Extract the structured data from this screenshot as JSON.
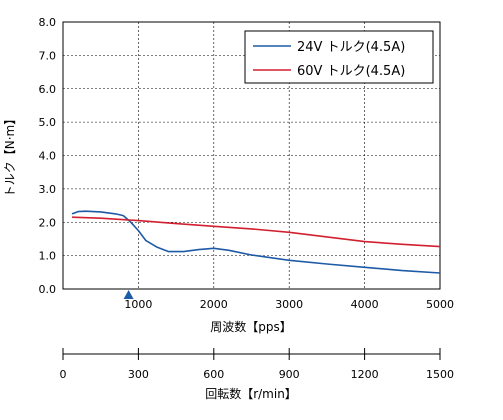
{
  "chart_data": {
    "type": "line",
    "xlabel": "周波数【pps】",
    "ylabel": "トルク【N·m】",
    "xlim": [
      0,
      5000
    ],
    "ylim": [
      0,
      8
    ],
    "x_ticks": [
      "1000",
      "2000",
      "3000",
      "4000",
      "5000"
    ],
    "y_ticks": [
      "0.0",
      "1.0",
      "2.0",
      "3.0",
      "4.0",
      "5.0",
      "6.0",
      "7.0",
      "8.0"
    ],
    "grid": true,
    "legend_position": "top-right",
    "marker_x": 870,
    "series": [
      {
        "name": "24V トルク(4.5A)",
        "color": "#1f5aa6",
        "points": [
          [
            120,
            2.25
          ],
          [
            200,
            2.32
          ],
          [
            300,
            2.33
          ],
          [
            500,
            2.31
          ],
          [
            700,
            2.25
          ],
          [
            800,
            2.2
          ],
          [
            900,
            2.0
          ],
          [
            1000,
            1.75
          ],
          [
            1100,
            1.45
          ],
          [
            1250,
            1.25
          ],
          [
            1400,
            1.12
          ],
          [
            1600,
            1.12
          ],
          [
            1800,
            1.18
          ],
          [
            2000,
            1.22
          ],
          [
            2200,
            1.16
          ],
          [
            2500,
            1.02
          ],
          [
            3000,
            0.86
          ],
          [
            3500,
            0.75
          ],
          [
            4000,
            0.65
          ],
          [
            4500,
            0.55
          ],
          [
            5000,
            0.48
          ]
        ]
      },
      {
        "name": "60V トルク(4.5A)",
        "color": "#d22030",
        "points": [
          [
            120,
            2.15
          ],
          [
            500,
            2.12
          ],
          [
            1000,
            2.05
          ],
          [
            1500,
            1.96
          ],
          [
            2000,
            1.88
          ],
          [
            2500,
            1.8
          ],
          [
            3000,
            1.7
          ],
          [
            3500,
            1.56
          ],
          [
            4000,
            1.42
          ],
          [
            4500,
            1.34
          ],
          [
            5000,
            1.27
          ]
        ]
      }
    ],
    "secondary_axis": {
      "label": "回転数【r/min】",
      "xlim": [
        0,
        1500
      ],
      "tick_values": [
        0,
        300,
        600,
        900,
        1200,
        1500
      ],
      "tick_labels": [
        "0",
        "300",
        "600",
        "900",
        "1200",
        "1500"
      ]
    }
  }
}
